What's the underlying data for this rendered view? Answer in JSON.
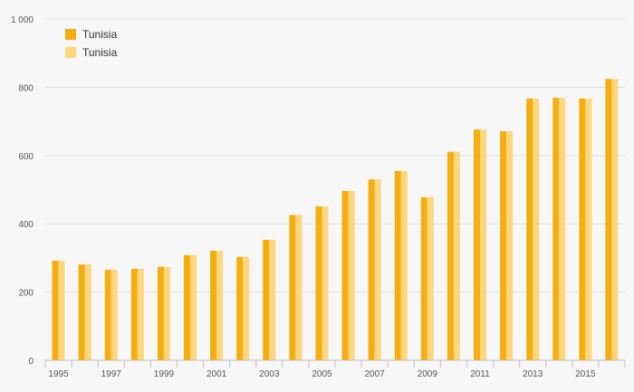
{
  "chart_data": {
    "type": "bar",
    "title": "",
    "xlabel": "",
    "ylabel": "",
    "ylim": [
      0,
      1000
    ],
    "yticks": [
      0,
      200,
      400,
      600,
      800,
      1000
    ],
    "ytick_labels": [
      "0",
      "200",
      "400",
      "600",
      "800",
      "1 000"
    ],
    "categories": [
      "1995",
      "1996",
      "1997",
      "1998",
      "1999",
      "2000",
      "2001",
      "2002",
      "2003",
      "2004",
      "2005",
      "2006",
      "2007",
      "2008",
      "2009",
      "2010",
      "2011",
      "2012",
      "2013",
      "2014",
      "2015",
      "2016"
    ],
    "xtick_labels": [
      "1995",
      "",
      "1997",
      "",
      "1999",
      "",
      "2001",
      "",
      "2003",
      "",
      "2005",
      "",
      "2007",
      "",
      "2009",
      "",
      "2011",
      "",
      "2013",
      "",
      "2015",
      ""
    ],
    "series": [
      {
        "name": "Tunisia",
        "color": "#f5ad0f",
        "values": [
          292,
          281,
          265,
          268,
          274,
          308,
          321,
          303,
          353,
          426,
          451,
          496,
          530,
          555,
          478,
          611,
          676,
          671,
          767,
          769,
          767,
          824
        ]
      },
      {
        "name": "Tunisia",
        "color": "#fdd67e",
        "values": [
          292,
          281,
          265,
          268,
          274,
          308,
          321,
          303,
          353,
          426,
          451,
          496,
          530,
          555,
          478,
          611,
          676,
          671,
          767,
          769,
          767,
          824
        ]
      }
    ],
    "grid": true,
    "legend_position": "top-left"
  }
}
